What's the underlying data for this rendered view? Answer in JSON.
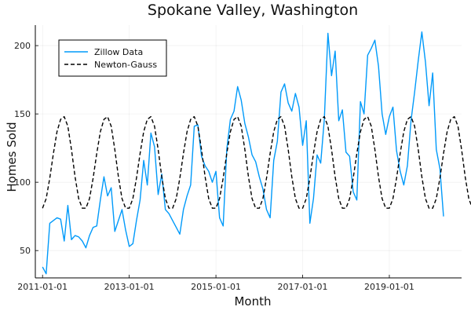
{
  "chart_data": {
    "type": "line",
    "title": "Spokane Valley, Washington",
    "xlabel": "Month",
    "ylabel": "Homes Sold",
    "xlim": [
      "2010-11-01",
      "2020-09-01"
    ],
    "ylim": [
      30,
      215
    ],
    "x_ticks": [
      "2011-01-01",
      "2013-01-01",
      "2015-01-01",
      "2017-01-01",
      "2019-01-01"
    ],
    "y_ticks": [
      50,
      100,
      150,
      200
    ],
    "grid": true,
    "legend_position": "top-left",
    "x_start": "2011-01-01",
    "x_step": "1 month",
    "series": [
      {
        "name": "Zillow Data",
        "color": "#009AFA",
        "style": "solid",
        "values": [
          38,
          33,
          70,
          72,
          74,
          73,
          57,
          83,
          58,
          61,
          60,
          57,
          52,
          61,
          67,
          68,
          87,
          104,
          90,
          96,
          64,
          72,
          80,
          65,
          53,
          55,
          72,
          87,
          116,
          98,
          136,
          126,
          91,
          106,
          80,
          77,
          72,
          67,
          62,
          80,
          90,
          98,
          141,
          142,
          119,
          112,
          108,
          100,
          108,
          74,
          68,
          124,
          146,
          152,
          170,
          160,
          143,
          133,
          120,
          115,
          104,
          95,
          80,
          74,
          116,
          130,
          166,
          172,
          158,
          152,
          165,
          155,
          127,
          145,
          70,
          88,
          120,
          114,
          146,
          209,
          178,
          196,
          145,
          153,
          122,
          119,
          93,
          87,
          159,
          150,
          193,
          198,
          204,
          185,
          150,
          135,
          148,
          155,
          123,
          108,
          98,
          112,
          145,
          166,
          189,
          210,
          188,
          156,
          180,
          124,
          110,
          75
        ],
        "values_note": "monthly counts starting 2011-01"
      },
      {
        "name": "Newton-Gauss",
        "color": "#000000",
        "style": "dashed",
        "values": [
          81,
          88,
          103,
          121,
          137,
          146,
          148,
          141,
          124,
          104,
          88,
          81,
          81,
          88,
          103,
          121,
          137,
          146,
          148,
          141,
          124,
          104,
          88,
          81,
          81,
          88,
          103,
          121,
          137,
          146,
          148,
          141,
          124,
          104,
          88,
          81,
          81,
          88,
          103,
          121,
          137,
          146,
          148,
          141,
          124,
          104,
          88,
          81,
          81,
          88,
          103,
          121,
          137,
          146,
          148,
          141,
          124,
          104,
          88,
          81,
          81,
          88,
          103,
          121,
          137,
          146,
          148,
          141,
          124,
          104,
          88,
          81,
          81,
          88,
          103,
          121,
          137,
          146,
          148,
          141,
          124,
          104,
          88,
          81,
          81,
          88,
          103,
          121,
          137,
          146,
          148,
          141,
          124,
          104,
          88,
          81,
          81,
          88,
          103,
          121,
          137,
          146,
          148,
          141,
          124,
          104,
          88,
          81,
          81,
          88,
          103,
          121,
          137,
          146,
          148,
          141,
          124,
          104,
          88,
          81
        ]
      }
    ]
  }
}
